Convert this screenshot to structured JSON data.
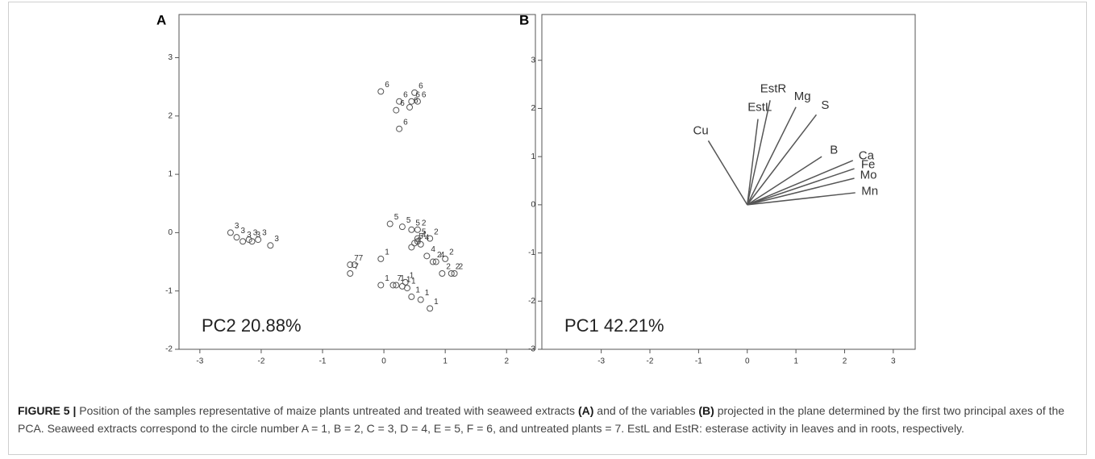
{
  "chart_data": [
    {
      "type": "scatter",
      "label": "A",
      "annotation": "PC2 20.88%",
      "xlim": [
        -3.34,
        2.47
      ],
      "ylim": [
        -2,
        3.74
      ],
      "xticks": [
        -3,
        -2,
        -1,
        0,
        1,
        2
      ],
      "yticks": [
        -2,
        -1,
        0,
        1,
        2,
        3
      ],
      "series": [
        {
          "name": "1",
          "x": [
            -0.05,
            -0.05,
            0.2,
            0.35,
            0.3,
            0.45,
            0.6,
            0.75,
            0.38
          ],
          "y": [
            -0.45,
            -0.9,
            -0.9,
            -0.85,
            -0.92,
            -1.1,
            -1.15,
            -1.3,
            -0.95
          ]
        },
        {
          "name": "2",
          "x": [
            0.55,
            0.75,
            1.0,
            0.8,
            1.1,
            1.15,
            0.95
          ],
          "y": [
            0.05,
            -0.1,
            -0.45,
            -0.5,
            -0.7,
            -0.7,
            -0.7
          ]
        },
        {
          "name": "3",
          "x": [
            -2.5,
            -2.4,
            -2.2,
            -2.15,
            -2.05,
            -1.85,
            -2.3
          ],
          "y": [
            0.0,
            -0.08,
            -0.12,
            -0.15,
            -0.12,
            -0.22,
            -0.15
          ]
        },
        {
          "name": "4",
          "x": [
            0.45,
            0.6,
            0.7,
            0.55,
            0.85
          ],
          "y": [
            -0.25,
            -0.2,
            -0.4,
            -0.15,
            -0.5
          ]
        },
        {
          "name": "5",
          "x": [
            0.1,
            0.3,
            0.45,
            0.55,
            0.5
          ],
          "y": [
            0.15,
            0.1,
            0.05,
            -0.1,
            -0.18
          ]
        },
        {
          "name": "6",
          "x": [
            -0.05,
            0.25,
            0.45,
            0.5,
            0.2,
            0.42,
            0.25,
            0.55
          ],
          "y": [
            2.42,
            2.25,
            2.25,
            2.4,
            2.1,
            2.15,
            1.78,
            2.25
          ]
        },
        {
          "name": "7",
          "x": [
            -0.55,
            -0.48,
            -0.55,
            0.15
          ],
          "y": [
            -0.55,
            -0.55,
            -0.7,
            -0.9
          ]
        }
      ]
    },
    {
      "type": "vector",
      "label": "B",
      "annotation": "PC1 42.21%",
      "xlim": [
        -4.22,
        3.45
      ],
      "ylim": [
        -3,
        3.95
      ],
      "xticks": [
        -3,
        -2,
        -1,
        0,
        1,
        2,
        3
      ],
      "yticks": [
        -3,
        -2,
        -1,
        0,
        1,
        2,
        3
      ],
      "categories": [
        "Cu",
        "EstL",
        "EstR",
        "Mg",
        "S",
        "B",
        "Ca",
        "Fe",
        "Mo",
        "Mn"
      ],
      "x": [
        -0.8,
        0.22,
        0.47,
        1.0,
        1.42,
        1.53,
        2.17,
        2.2,
        2.2,
        2.22
      ],
      "y": [
        1.33,
        1.78,
        2.17,
        2.03,
        1.87,
        1.0,
        0.92,
        0.75,
        0.55,
        0.25
      ]
    }
  ],
  "caption": {
    "label": "FIGURE 5 |",
    "t1": " Position of the samples representative of maize plants untreated and treated with seaweed extracts ",
    "b1": "(A)",
    "t2": " and of the variables ",
    "b2": "(B)",
    "t3": " projected in the plane determined by the first two principal axes of the PCA. Seaweed extracts correspond to the circle number A = 1, B = 2, C = 3, D = 4, E = 5, F = 6, and untreated plants = 7. EstL and EstR: esterase activity in leaves and in roots, respectively."
  }
}
